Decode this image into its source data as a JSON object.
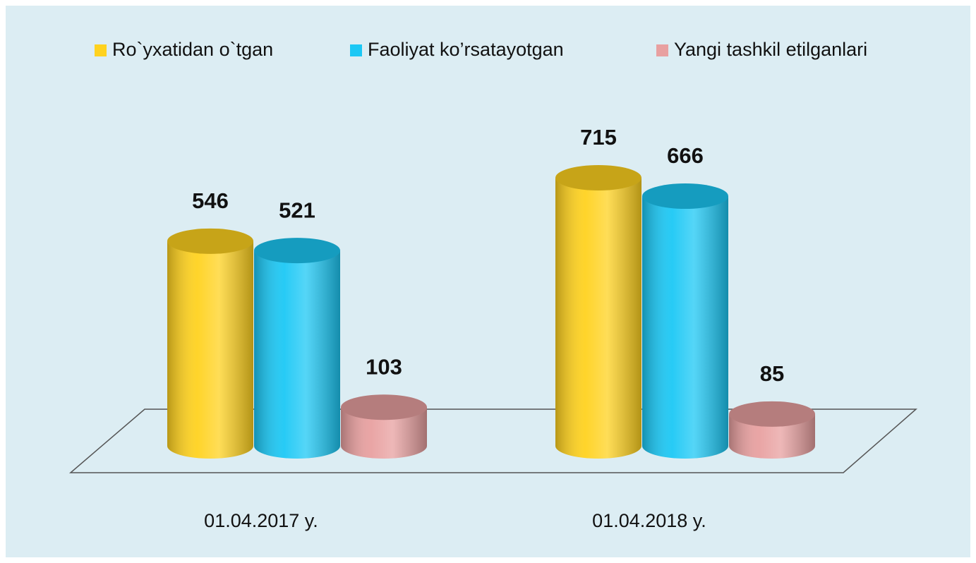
{
  "chart_data": {
    "type": "cylinder-bar",
    "categories": [
      "01.04.2017 y.",
      "01.04.2018 y."
    ],
    "series": [
      {
        "name": "Ro`yxatidan o`tgan",
        "color": "#ffd21f",
        "values": [
          546,
          715
        ]
      },
      {
        "name": "Faoliyat ko’rsatayotgan",
        "color": "#1cc8f5",
        "values": [
          521,
          666
        ]
      },
      {
        "name": "Yangi tashkil etilganlari",
        "color": "#e8a0a0",
        "values": [
          103,
          85
        ]
      }
    ]
  }
}
